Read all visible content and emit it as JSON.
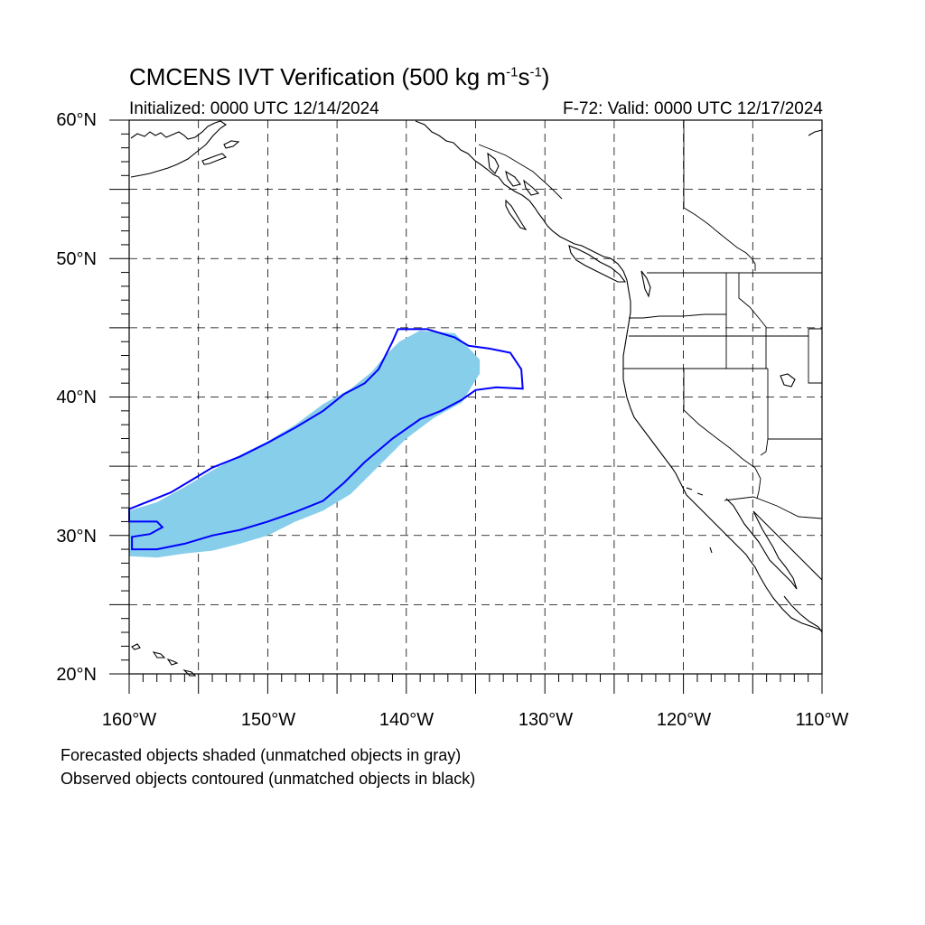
{
  "header": {
    "title_main": "CMCENS IVT Verification (500 kg m",
    "title_exp1": "-1",
    "title_mid": "s",
    "title_exp2": "-1",
    "title_end": ")",
    "initialized": "Initialized: 0000 UTC 12/14/2024",
    "valid": "F-72: Valid: 0000 UTC 12/17/2024"
  },
  "axes": {
    "lat_labels": [
      "60°N",
      "50°N",
      "40°N",
      "30°N",
      "20°N"
    ],
    "lon_labels": [
      "160°W",
      "150°W",
      "140°W",
      "130°W",
      "120°W",
      "110°W"
    ],
    "lat_range": [
      20,
      60
    ],
    "lon_range": [
      -160,
      -110
    ],
    "grid": "dashed",
    "grid_spacing_deg": 5
  },
  "legend": {
    "line1": "Forecasted objects shaded (unmatched objects in gray)",
    "line2": "Observed objects contoured (unmatched objects in black)"
  },
  "colors": {
    "forecast_fill": "#87CEEB",
    "observed_contour": "#0000FF",
    "coastline": "#000000",
    "grid": "#000000"
  },
  "objects": {
    "forecast_object": {
      "type": "shaded",
      "points_lonlat": [
        [
          -160,
          28.5
        ],
        [
          -158,
          28.4
        ],
        [
          -156,
          28.7
        ],
        [
          -154,
          28.9
        ],
        [
          -152,
          29.4
        ],
        [
          -150,
          30.0
        ],
        [
          -148,
          31.0
        ],
        [
          -146,
          31.8
        ],
        [
          -144,
          33.0
        ],
        [
          -142,
          35.0
        ],
        [
          -140,
          37.0
        ],
        [
          -138,
          38.5
        ],
        [
          -136,
          39.6
        ],
        [
          -134.7,
          41.7
        ],
        [
          -134.7,
          42.7
        ],
        [
          -136.5,
          44.6
        ],
        [
          -139,
          44.8
        ],
        [
          -140.5,
          44.0
        ],
        [
          -141.5,
          43.0
        ],
        [
          -142.5,
          41.8
        ],
        [
          -144,
          40.6
        ],
        [
          -146,
          39.5
        ],
        [
          -148,
          38.0
        ],
        [
          -150,
          36.8
        ],
        [
          -152,
          35.8
        ],
        [
          -154,
          34.7
        ],
        [
          -156,
          33.5
        ],
        [
          -158,
          32.4
        ],
        [
          -160,
          31.8
        ]
      ]
    },
    "observed_object": {
      "type": "contour",
      "points_lonlat": [
        [
          -160,
          31.9
        ],
        [
          -158.5,
          32.5
        ],
        [
          -157,
          33.1
        ],
        [
          -155.5,
          34.0
        ],
        [
          -154,
          34.9
        ],
        [
          -152,
          35.7
        ],
        [
          -150,
          36.7
        ],
        [
          -148,
          37.8
        ],
        [
          -146,
          39.0
        ],
        [
          -144.5,
          40.2
        ],
        [
          -143,
          41.0
        ],
        [
          -142,
          42.0
        ],
        [
          -141.5,
          43.0
        ],
        [
          -141.0,
          44.0
        ],
        [
          -140.6,
          44.9
        ],
        [
          -138.5,
          44.9
        ],
        [
          -136.5,
          44.3
        ],
        [
          -135.5,
          43.7
        ],
        [
          -134,
          43.5
        ],
        [
          -132.5,
          43.2
        ],
        [
          -131.7,
          42.0
        ],
        [
          -131.6,
          40.6
        ],
        [
          -133.5,
          40.7
        ],
        [
          -135,
          40.5
        ],
        [
          -136,
          39.8
        ],
        [
          -137.5,
          39.0
        ],
        [
          -139,
          38.4
        ],
        [
          -141,
          37.0
        ],
        [
          -143,
          35.3
        ],
        [
          -144.5,
          33.8
        ],
        [
          -146,
          32.5
        ],
        [
          -148,
          31.7
        ],
        [
          -150,
          31.0
        ],
        [
          -152,
          30.4
        ],
        [
          -154,
          30.0
        ],
        [
          -156,
          29.4
        ],
        [
          -158,
          29.0
        ],
        [
          -159.8,
          29.0
        ],
        [
          -159.8,
          29.9
        ],
        [
          -158.5,
          30.1
        ],
        [
          -157.6,
          30.6
        ],
        [
          -158.0,
          31.0
        ],
        [
          -160,
          31.0
        ]
      ]
    }
  }
}
